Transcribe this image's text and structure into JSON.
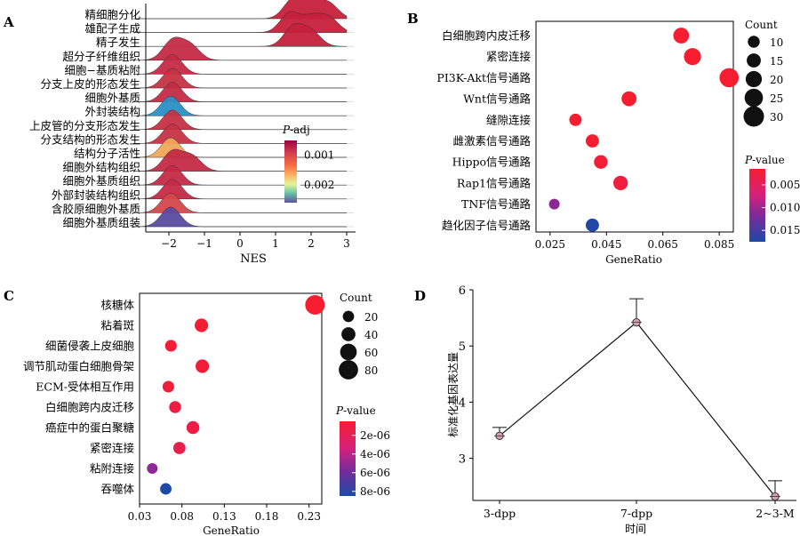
{
  "chart_data": [
    {
      "panel": "A",
      "type": "ridgeline",
      "xlabel": "NES",
      "xlim": [
        -3,
        3
      ],
      "xticks": [
        "−2",
        "−1",
        "0",
        "1",
        "2",
        "3"
      ],
      "legend": {
        "title_italic": "P",
        "title_rest": "-adj",
        "ticks": [
          "0.001",
          "0.002"
        ],
        "range": [
          0.0005,
          0.0026
        ]
      },
      "ridges": [
        {
          "label": "精细胞分化",
          "peaks": [
            1.5,
            2.0,
            2.5
          ],
          "padj": 0.0005,
          "color": "#c6203a"
        },
        {
          "label": "雄配子生成",
          "peaks": [
            1.4,
            2.0,
            2.5
          ],
          "padj": 0.0005,
          "color": "#c6203a"
        },
        {
          "label": "精子发生",
          "peaks": [
            1.5,
            2.0
          ],
          "padj": 0.0005,
          "color": "#c6203a"
        },
        {
          "label": "超分子纤维组织",
          "peaks": [
            -1.9,
            -1.4
          ],
          "padj": 0.0006,
          "color": "#c42a45"
        },
        {
          "label": "细胞−基质粘附",
          "peaks": [
            -1.9
          ],
          "padj": 0.0006,
          "color": "#c42a45"
        },
        {
          "label": "分支上皮的形态发生",
          "peaks": [
            -1.9
          ],
          "padj": 0.0007,
          "color": "#c63245"
        },
        {
          "label": "细胞外基质",
          "peaks": [
            -1.9
          ],
          "padj": 0.0006,
          "color": "#c42a45"
        },
        {
          "label": "外封装结构",
          "peaks": [
            -1.95
          ],
          "padj": 0.0024,
          "color": "#2a8fc4"
        },
        {
          "label": "上皮管的分支形态发生",
          "peaks": [
            -1.9
          ],
          "padj": 0.0007,
          "color": "#c63245"
        },
        {
          "label": "分支结构的形态发生",
          "peaks": [
            -1.9
          ],
          "padj": 0.0007,
          "color": "#c63245"
        },
        {
          "label": "结构分子活性",
          "peaks": [
            -1.95
          ],
          "padj": 0.0013,
          "color": "#f0a85a"
        },
        {
          "label": "细胞外结构组织",
          "peaks": [
            -1.9,
            -1.35
          ],
          "padj": 0.0006,
          "color": "#c42a45"
        },
        {
          "label": "细胞外基质组织",
          "peaks": [
            -1.9
          ],
          "padj": 0.0006,
          "color": "#c42a45"
        },
        {
          "label": "外部封装结构组织",
          "peaks": [
            -1.9
          ],
          "padj": 0.0006,
          "color": "#c42a45"
        },
        {
          "label": "含胶原细胞外基质",
          "peaks": [
            -1.95
          ],
          "padj": 0.0009,
          "color": "#d4484a"
        },
        {
          "label": "细胞外基质组装",
          "peaks": [
            -1.95
          ],
          "padj": 0.0025,
          "color": "#5a4ba0"
        }
      ]
    },
    {
      "panel": "B",
      "type": "scatter",
      "xlabel": "GeneRatio",
      "xlim": [
        0.02,
        0.09
      ],
      "xticks": [
        "0.025",
        "0.045",
        "0.065",
        "0.085"
      ],
      "size_legend": {
        "title": "Count",
        "values": [
          10,
          15,
          20,
          25,
          30
        ]
      },
      "color_legend": {
        "title_italic": "P",
        "title_rest": "-value",
        "ticks": [
          "0.005",
          "0.010",
          "0.015"
        ],
        "range": [
          0.0015,
          0.0175
        ]
      },
      "points": [
        {
          "label": "白细胞跨内皮迁移",
          "x": 0.0715,
          "count": 19,
          "p": 0.0015
        },
        {
          "label": "紧密连接",
          "x": 0.0755,
          "count": 22,
          "p": 0.0015
        },
        {
          "label": "PI3K-Akt信号通路",
          "x": 0.0885,
          "count": 27,
          "p": 0.0015
        },
        {
          "label": "Wnt信号通路",
          "x": 0.053,
          "count": 17,
          "p": 0.0015
        },
        {
          "label": "缝隙连接",
          "x": 0.034,
          "count": 11,
          "p": 0.0015
        },
        {
          "label": "雌激素信号通路",
          "x": 0.04,
          "count": 13,
          "p": 0.0015
        },
        {
          "label": "Hippo信号通路",
          "x": 0.043,
          "count": 14,
          "p": 0.002
        },
        {
          "label": "Rap1信号通路",
          "x": 0.05,
          "count": 16,
          "p": 0.0025
        },
        {
          "label": "TNF信号通路",
          "x": 0.0265,
          "count": 7,
          "p": 0.011
        },
        {
          "label": "趋化因子信号通路",
          "x": 0.04,
          "count": 13,
          "p": 0.0172
        }
      ]
    },
    {
      "panel": "C",
      "type": "scatter",
      "xlabel": "GeneRatio",
      "xlim": [
        0.03,
        0.245
      ],
      "xticks": [
        "0.03",
        "0.08",
        "0.13",
        "0.18",
        "0.23"
      ],
      "size_legend": {
        "title": "Count",
        "values": [
          20,
          40,
          60,
          80
        ]
      },
      "color_legend": {
        "title_italic": "P",
        "title_rest": "-value",
        "ticks": [
          "2e-06",
          "4e-06",
          "6e-06",
          "8e-06"
        ],
        "range": [
          5e-07,
          8.5e-06
        ]
      },
      "points": [
        {
          "label": "核糖体",
          "x": 0.237,
          "count": 82,
          "p": 5e-07
        },
        {
          "label": "粘着斑",
          "x": 0.103,
          "count": 36,
          "p": 6e-07
        },
        {
          "label": "细菌侵袭上皮细胞",
          "x": 0.067,
          "count": 23,
          "p": 7e-07
        },
        {
          "label": "调节肌动蛋白细胞骨架",
          "x": 0.104,
          "count": 36,
          "p": 8e-07
        },
        {
          "label": "ECM-受体相互作用",
          "x": 0.064,
          "count": 22,
          "p": 9e-07
        },
        {
          "label": "白细胞跨内皮迁移",
          "x": 0.072,
          "count": 25,
          "p": 1.2e-06
        },
        {
          "label": "癌症中的蛋白聚糖",
          "x": 0.093,
          "count": 32,
          "p": 1.4e-06
        },
        {
          "label": "紧密连接",
          "x": 0.077,
          "count": 27,
          "p": 1.6e-06
        },
        {
          "label": "粘附连接",
          "x": 0.045,
          "count": 15,
          "p": 5.2e-06
        },
        {
          "label": "吞噬体",
          "x": 0.061,
          "count": 21,
          "p": 8.5e-06
        }
      ]
    },
    {
      "panel": "D",
      "type": "line",
      "xlabel": "时间",
      "ylabel": "标准化基因表达量",
      "categories": [
        "3-dpp",
        "7-dpp",
        "2~3-M"
      ],
      "values": [
        3.4,
        5.42,
        2.32
      ],
      "errors": [
        0.15,
        0.42,
        0.28
      ],
      "ylim": [
        2.25,
        6.0
      ],
      "yticks": [
        3,
        4,
        5,
        6
      ]
    }
  ]
}
